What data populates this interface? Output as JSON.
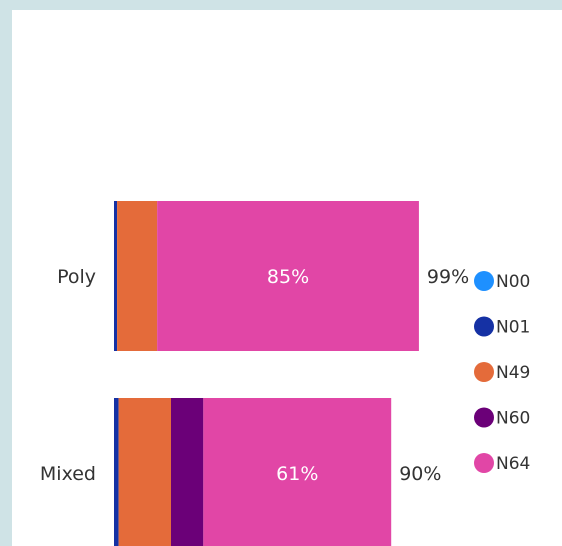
{
  "chart_data": {
    "type": "bar",
    "orientation": "horizontal",
    "stacked": true,
    "categories": [
      "Poly",
      "Mixed"
    ],
    "series": [
      {
        "name": "N00",
        "color": "#1e90ff",
        "values": [
          0,
          0
        ]
      },
      {
        "name": "N01",
        "color": "#1531a4",
        "values": [
          1,
          1.5
        ]
      },
      {
        "name": "N49",
        "color": "#e46b3a",
        "values": [
          13,
          17
        ]
      },
      {
        "name": "N60",
        "color": "#6b0078",
        "values": [
          0,
          10.5
        ]
      },
      {
        "name": "N64",
        "color": "#e146a6",
        "values": [
          85,
          61
        ]
      }
    ],
    "segment_labels": [
      {
        "category": "Poly",
        "series": "N64",
        "text": "85%"
      },
      {
        "category": "Mixed",
        "series": "N64",
        "text": "61%"
      }
    ],
    "totals": [
      "99%",
      "90%"
    ],
    "legend_position": "right",
    "xlabel": "",
    "ylabel": "",
    "xlim": [
      0,
      100
    ]
  }
}
